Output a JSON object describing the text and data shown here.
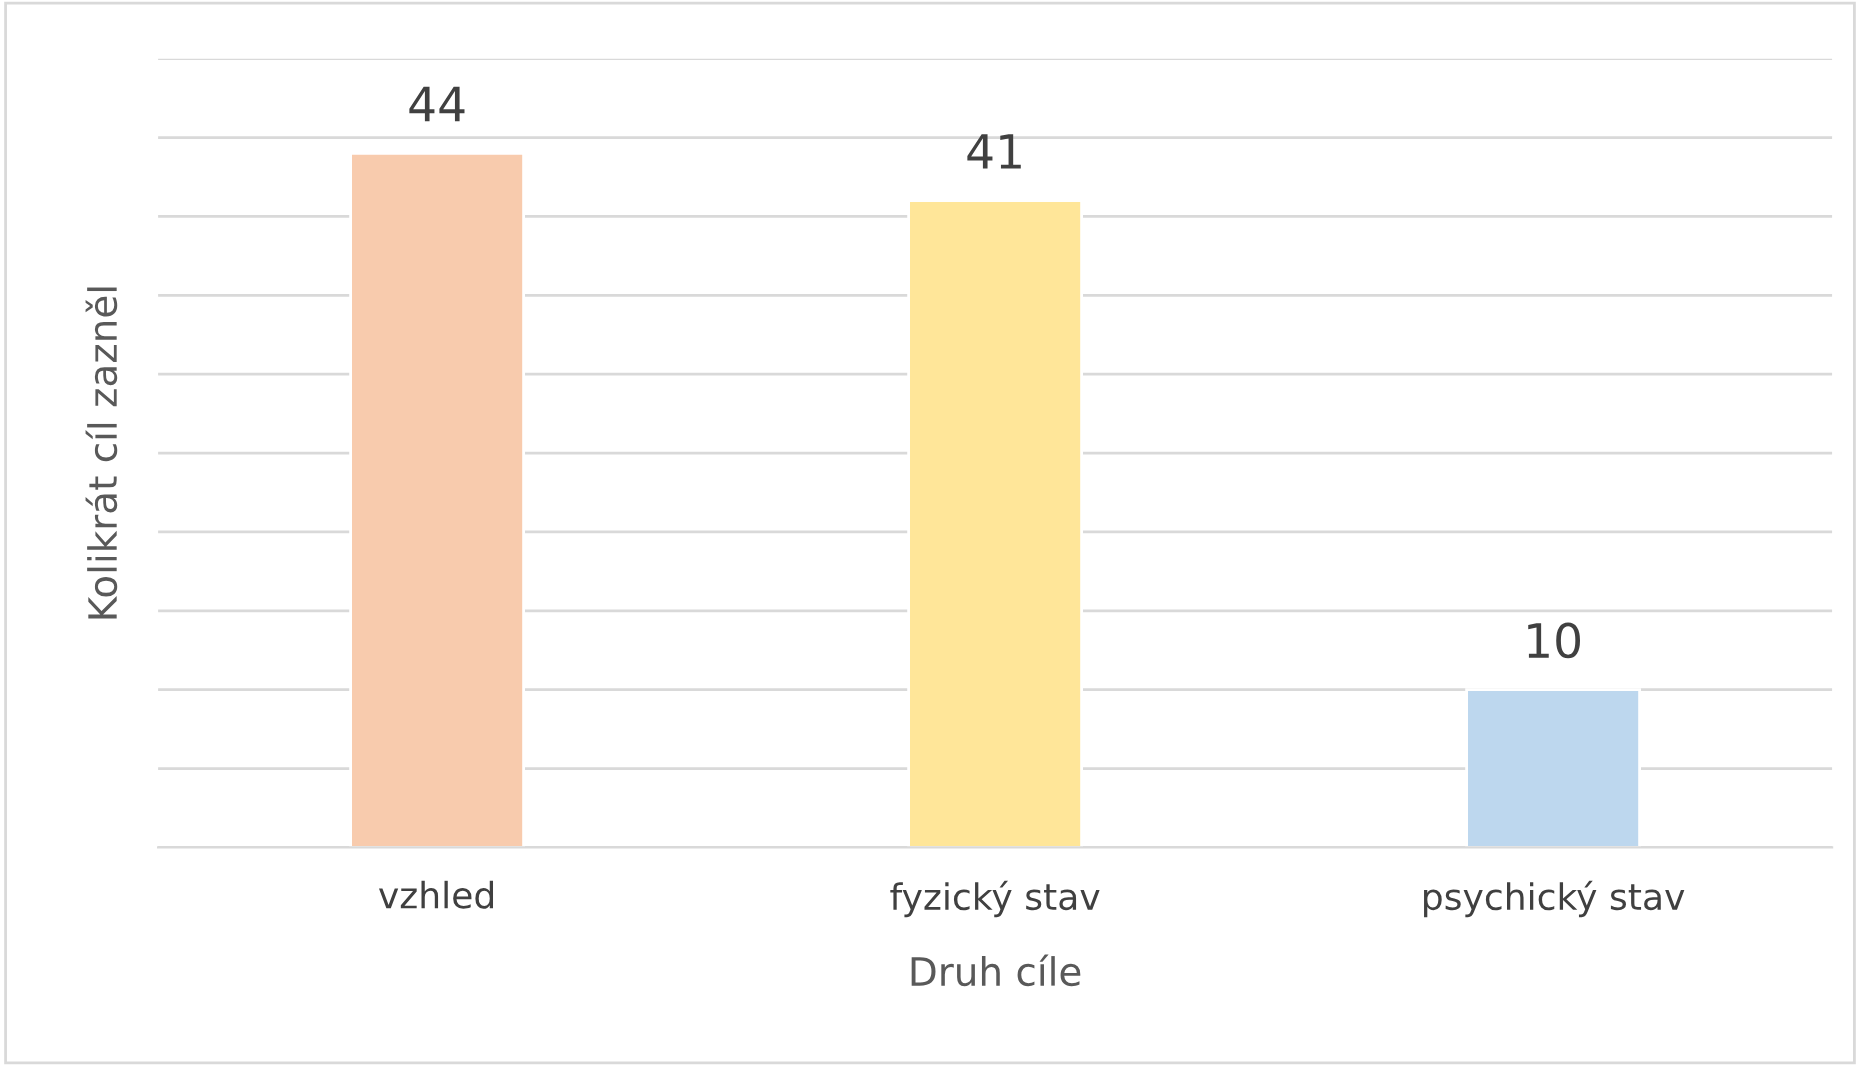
{
  "chart_data": {
    "type": "bar",
    "xlabel": "Druh cíle",
    "ylabel": "Kolikrát cíl zazněl",
    "categories": [
      "vzhled",
      "fyzický stav",
      "psychický stav"
    ],
    "values": [
      44,
      41,
      10
    ],
    "colors": [
      "#f8cbad",
      "#ffe699",
      "#bdd7ee"
    ],
    "ylim": [
      0,
      50
    ],
    "yticks": [
      0,
      5,
      10,
      15,
      20,
      25,
      30,
      35,
      40,
      45,
      50
    ],
    "tick_labels": "x",
    "grid": "y",
    "data_labels": true
  }
}
